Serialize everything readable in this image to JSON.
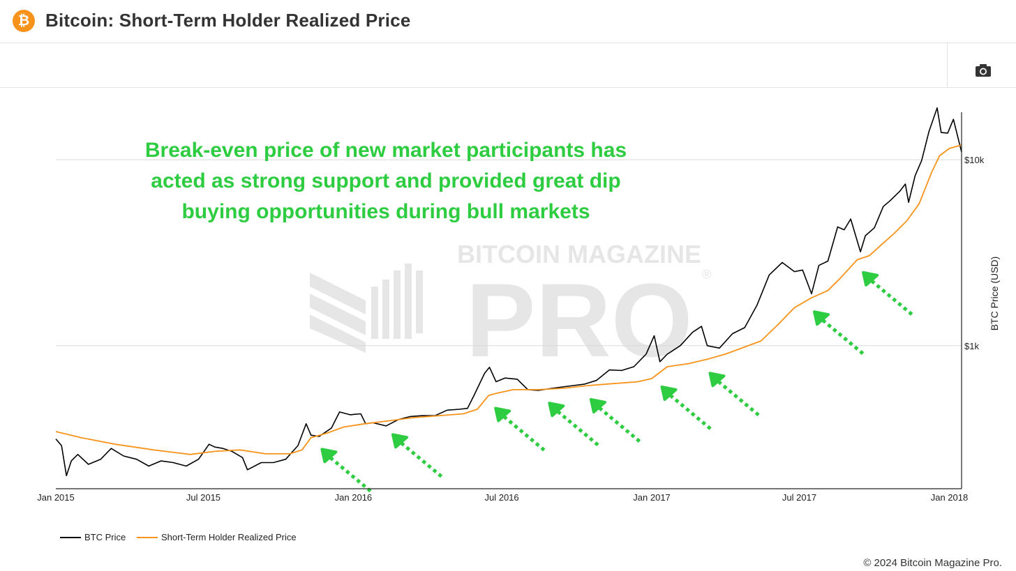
{
  "header": {
    "title": "Bitcoin: Short-Term Holder Realized Price",
    "logo_glyph": "₿",
    "logo_color": "#f7931a"
  },
  "toolbar": {
    "camera_icon": "camera-icon"
  },
  "annotation": {
    "lines": [
      "Break-even price of new market participants has",
      "acted as strong support and provided great dip",
      "buying opportunities during bull markets"
    ],
    "color": "#2ecc40"
  },
  "watermark": {
    "line1": "BITCOIN MAGAZINE",
    "line2": "PRO",
    "registered": "®"
  },
  "chart_data": {
    "type": "line",
    "title": "Bitcoin: Short-Term Holder Realized Price",
    "ylabel": "BTC Price (USD)",
    "yscale": "log",
    "ylim": [
      170,
      18000
    ],
    "xlim": [
      "2015-01-01",
      "2018-01-16"
    ],
    "y_ticks": [
      {
        "value": 1000,
        "label": "$1k"
      },
      {
        "value": 10000,
        "label": "$10k"
      }
    ],
    "x_ticks": [
      {
        "date": "2015-01-01",
        "label": "Jan 2015"
      },
      {
        "date": "2015-07-01",
        "label": "Jul 2015"
      },
      {
        "date": "2016-01-01",
        "label": "Jan 2016"
      },
      {
        "date": "2016-07-01",
        "label": "Jul 2016"
      },
      {
        "date": "2017-01-01",
        "label": "Jan 2017"
      },
      {
        "date": "2017-07-01",
        "label": "Jul 2017"
      },
      {
        "date": "2018-01-01",
        "label": "Jan 2018"
      }
    ],
    "grid": "horizontal",
    "legend_position": "bottom-left",
    "series": [
      {
        "name": "BTC Price",
        "color": "#000000",
        "x": [
          "2015-01-01",
          "2015-01-08",
          "2015-01-14",
          "2015-01-20",
          "2015-01-28",
          "2015-02-10",
          "2015-02-25",
          "2015-03-10",
          "2015-03-25",
          "2015-04-10",
          "2015-04-25",
          "2015-05-10",
          "2015-05-25",
          "2015-06-10",
          "2015-06-25",
          "2015-07-08",
          "2015-07-15",
          "2015-07-25",
          "2015-08-05",
          "2015-08-18",
          "2015-08-24",
          "2015-09-10",
          "2015-09-25",
          "2015-10-10",
          "2015-10-25",
          "2015-11-04",
          "2015-11-10",
          "2015-11-20",
          "2015-12-05",
          "2015-12-15",
          "2015-12-28",
          "2016-01-10",
          "2016-01-16",
          "2016-01-25",
          "2016-02-10",
          "2016-02-25",
          "2016-03-10",
          "2016-03-25",
          "2016-04-10",
          "2016-04-25",
          "2016-05-10",
          "2016-05-20",
          "2016-05-28",
          "2016-06-10",
          "2016-06-16",
          "2016-06-24",
          "2016-07-05",
          "2016-07-20",
          "2016-08-02",
          "2016-08-15",
          "2016-09-01",
          "2016-09-20",
          "2016-10-10",
          "2016-10-25",
          "2016-11-10",
          "2016-11-25",
          "2016-12-10",
          "2016-12-25",
          "2017-01-04",
          "2017-01-11",
          "2017-01-20",
          "2017-02-05",
          "2017-02-20",
          "2017-03-03",
          "2017-03-10",
          "2017-03-25",
          "2017-04-10",
          "2017-04-25",
          "2017-05-10",
          "2017-05-25",
          "2017-06-10",
          "2017-06-25",
          "2017-07-05",
          "2017-07-16",
          "2017-07-25",
          "2017-08-05",
          "2017-08-17",
          "2017-08-25",
          "2017-09-02",
          "2017-09-14",
          "2017-09-20",
          "2017-10-01",
          "2017-10-12",
          "2017-10-20",
          "2017-11-01",
          "2017-11-08",
          "2017-11-12",
          "2017-11-20",
          "2017-11-28",
          "2017-12-07",
          "2017-12-17",
          "2017-12-22",
          "2017-12-30",
          "2018-01-06",
          "2018-01-10",
          "2018-01-16"
        ],
        "y": [
          315,
          290,
          200,
          240,
          260,
          230,
          245,
          280,
          255,
          245,
          225,
          240,
          235,
          225,
          245,
          295,
          285,
          280,
          270,
          250,
          215,
          235,
          235,
          245,
          290,
          380,
          330,
          325,
          360,
          440,
          425,
          430,
          380,
          385,
          370,
          400,
          415,
          420,
          420,
          450,
          455,
          460,
          540,
          710,
          765,
          640,
          670,
          660,
          580,
          575,
          590,
          605,
          620,
          650,
          740,
          735,
          770,
          900,
          1130,
          820,
          900,
          1000,
          1180,
          1270,
          1000,
          970,
          1160,
          1250,
          1650,
          2400,
          2800,
          2500,
          2550,
          1900,
          2700,
          2850,
          4350,
          4200,
          4800,
          3200,
          3900,
          4300,
          5600,
          6000,
          6750,
          7400,
          5900,
          8200,
          9900,
          14200,
          19000,
          14000,
          13900,
          16500,
          14000,
          11000
        ]
      },
      {
        "name": "Short-Term Holder Realized Price",
        "color": "#f7931a",
        "x": [
          "2015-01-01",
          "2015-02-01",
          "2015-03-15",
          "2015-05-01",
          "2015-06-15",
          "2015-07-15",
          "2015-08-15",
          "2015-09-15",
          "2015-10-15",
          "2015-10-30",
          "2015-11-10",
          "2015-12-01",
          "2015-12-20",
          "2016-01-15",
          "2016-02-15",
          "2016-03-15",
          "2016-04-15",
          "2016-05-15",
          "2016-06-01",
          "2016-06-15",
          "2016-06-25",
          "2016-07-15",
          "2016-08-15",
          "2016-09-15",
          "2016-10-15",
          "2016-11-15",
          "2016-12-15",
          "2017-01-01",
          "2017-01-20",
          "2017-02-15",
          "2017-03-10",
          "2017-04-01",
          "2017-04-20",
          "2017-05-15",
          "2017-06-05",
          "2017-06-25",
          "2017-07-15",
          "2017-08-05",
          "2017-08-20",
          "2017-09-10",
          "2017-09-25",
          "2017-10-10",
          "2017-10-25",
          "2017-11-10",
          "2017-11-25",
          "2017-12-10",
          "2017-12-20",
          "2018-01-01",
          "2018-01-16"
        ],
        "y": [
          345,
          320,
          295,
          275,
          260,
          270,
          275,
          262,
          262,
          275,
          320,
          340,
          365,
          380,
          395,
          410,
          420,
          430,
          455,
          540,
          555,
          580,
          580,
          590,
          610,
          625,
          640,
          665,
          770,
          800,
          845,
          900,
          965,
          1060,
          1300,
          1600,
          1800,
          1980,
          2300,
          2900,
          3050,
          3500,
          4000,
          4700,
          5800,
          8500,
          10500,
          11500,
          12000
        ]
      }
    ],
    "annotations": [
      {
        "type": "support-arrow",
        "at_date": "2015-11-20"
      },
      {
        "type": "support-arrow",
        "at_date": "2016-02-15"
      },
      {
        "type": "support-arrow",
        "at_date": "2016-06-20"
      },
      {
        "type": "support-arrow",
        "at_date": "2016-08-25"
      },
      {
        "type": "support-arrow",
        "at_date": "2016-10-15"
      },
      {
        "type": "support-arrow",
        "at_date": "2017-01-10"
      },
      {
        "type": "support-arrow",
        "at_date": "2017-03-10"
      },
      {
        "type": "support-arrow",
        "at_date": "2017-07-16"
      },
      {
        "type": "support-arrow",
        "at_date": "2017-09-14"
      }
    ]
  },
  "footer": {
    "copyright": "© 2024 Bitcoin Magazine Pro."
  }
}
